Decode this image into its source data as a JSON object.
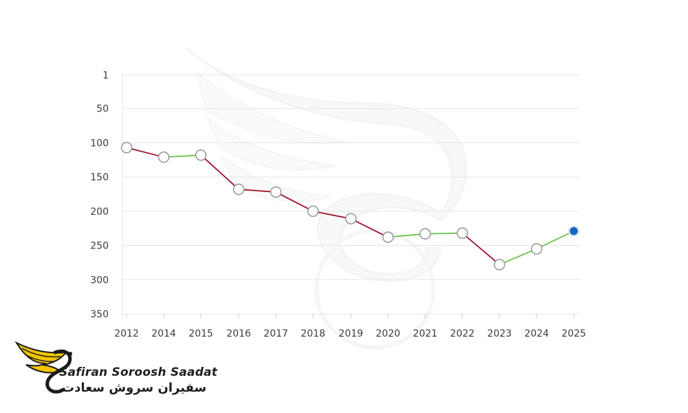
{
  "chart_data": {
    "type": "line",
    "title": "",
    "xlabel": "",
    "ylabel": "",
    "y_inverted": true,
    "yticks": [
      1,
      50,
      100,
      150,
      200,
      250,
      300,
      350
    ],
    "ylim": [
      1,
      350
    ],
    "x": [
      "2012",
      "2014",
      "2015",
      "2016",
      "2017",
      "2018",
      "2019",
      "2020",
      "2021",
      "2022",
      "2023",
      "2024",
      "2025"
    ],
    "values": [
      107,
      121,
      118,
      168,
      172,
      200,
      211,
      238,
      233,
      232,
      278,
      255,
      229
    ],
    "grid": true,
    "legend": "none",
    "colors": {
      "decline": "#a10f2b",
      "improve": "#6cc24a",
      "point_fill": "#ffffff",
      "point_stroke": "#9a9a9a",
      "last_point": "#1565c0",
      "grid": "#e3e3e3",
      "tick_text": "#3a3a3a"
    }
  },
  "brand": {
    "name_en": "Safiran Soroosh Saadat",
    "name_fa": "سفیران سروش سعادت",
    "logo_icon": "winged-s-logo-icon",
    "watermark_icon": "winged-s-watermark-icon",
    "logo_color": "#f2c500"
  }
}
